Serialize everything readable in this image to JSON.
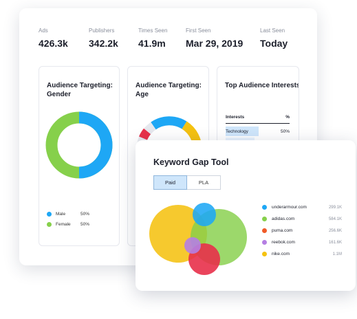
{
  "stats": [
    {
      "label": "Ads",
      "value": "426.3k"
    },
    {
      "label": "Publishers",
      "value": "342.2k"
    },
    {
      "label": "Times Seen",
      "value": "41.9m"
    },
    {
      "label": "First Seen",
      "value": "Mar 29, 2019"
    },
    {
      "label": "Last Seen",
      "value": "Today"
    }
  ],
  "gender_panel": {
    "title": "Audience Targeting: Gender",
    "legend": [
      {
        "label": "Male",
        "value": "50%",
        "color": "#1ea7f5"
      },
      {
        "label": "Female",
        "value": "50%",
        "color": "#86d04b"
      }
    ]
  },
  "age_panel": {
    "title": "Audience Targeting: Age",
    "segment_colors": [
      "#1ea7f5",
      "#f5c211",
      "#e6e8ee",
      "#e8304a"
    ]
  },
  "interests_panel": {
    "title": "Top Audience Interests",
    "columns": [
      "Interests",
      "%"
    ],
    "rows": [
      {
        "name": "Technology",
        "value": "50%"
      }
    ]
  },
  "keyword_gap": {
    "title": "Keyword Gap Tool",
    "tabs": [
      {
        "label": "Paid",
        "active": true
      },
      {
        "label": "PLA",
        "active": false
      }
    ],
    "domains": [
      {
        "name": "underarmour.com",
        "count": "299.1K",
        "color": "#1ea7f5"
      },
      {
        "name": "adidas.com",
        "count": "584.1K",
        "color": "#86d04b"
      },
      {
        "name": "puma.com",
        "count": "256.6K",
        "color": "#f05a28"
      },
      {
        "name": "reebok.com",
        "count": "161.6K",
        "color": "#b57fe3"
      },
      {
        "name": "nike.com",
        "count": "1.1M",
        "color": "#f5c211"
      }
    ]
  }
}
